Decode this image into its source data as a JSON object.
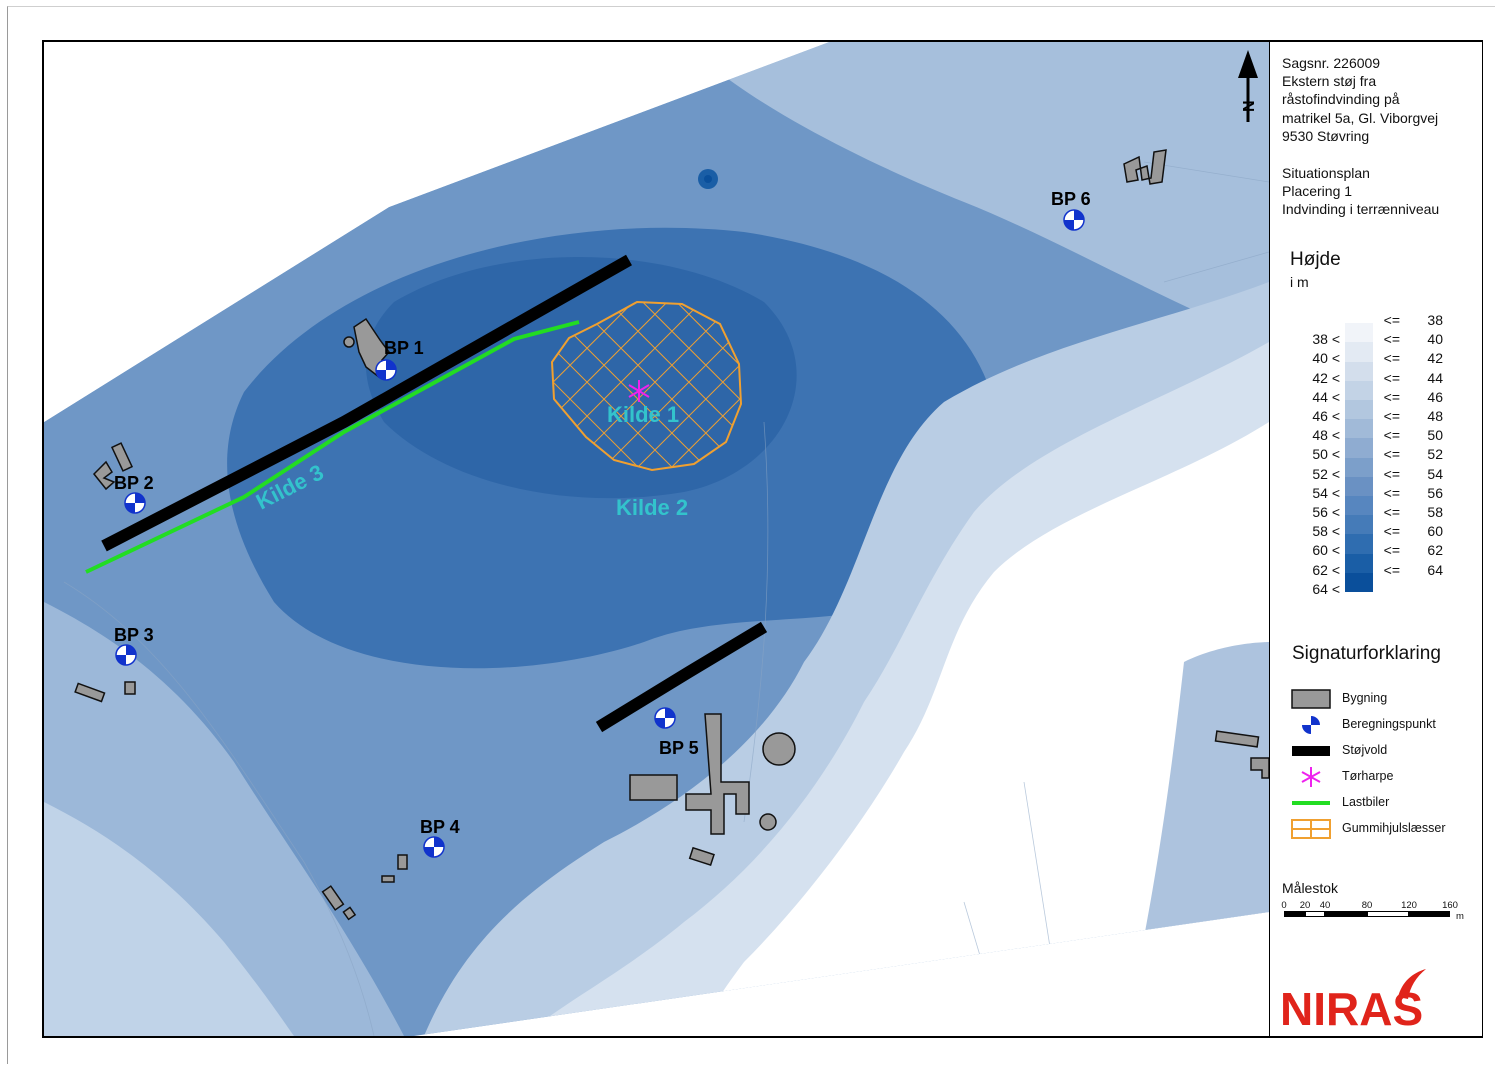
{
  "case_info": {
    "lines": [
      "Sagsnr. 226009",
      "Ekstern støj fra",
      "råstofindvinding på",
      "matrikel 5a, Gl. Viborgvej",
      "9530 Støvring"
    ]
  },
  "plan_info": {
    "lines": [
      "Situationsplan",
      "Placering 1",
      "Indvinding i terrænniveau"
    ]
  },
  "height_legend": {
    "title": "Højde",
    "unit": "i m",
    "rows": [
      {
        "lo": "",
        "le": "<=",
        "hi": "38",
        "color": ""
      },
      {
        "lo": "38 <",
        "le": "<=",
        "hi": "40",
        "color": "#f1f4f9"
      },
      {
        "lo": "40 <",
        "le": "<=",
        "hi": "42",
        "color": "#e3eaf3"
      },
      {
        "lo": "42 <",
        "le": "<=",
        "hi": "44",
        "color": "#d3deec"
      },
      {
        "lo": "44 <",
        "le": "<=",
        "hi": "46",
        "color": "#c3d3e6"
      },
      {
        "lo": "46 <",
        "le": "<=",
        "hi": "48",
        "color": "#b2c7df"
      },
      {
        "lo": "48 <",
        "le": "<=",
        "hi": "50",
        "color": "#a1bad8"
      },
      {
        "lo": "50 <",
        "le": "<=",
        "hi": "52",
        "color": "#8facd1"
      },
      {
        "lo": "52 <",
        "le": "<=",
        "hi": "54",
        "color": "#7c9fca"
      },
      {
        "lo": "54 <",
        "le": "<=",
        "hi": "56",
        "color": "#6a91c3"
      },
      {
        "lo": "56 <",
        "le": "<=",
        "hi": "58",
        "color": "#5786bf"
      },
      {
        "lo": "58 <",
        "le": "<=",
        "hi": "60",
        "color": "#457bb8"
      },
      {
        "lo": "60 <",
        "le": "<=",
        "hi": "62",
        "color": "#2f6db0"
      },
      {
        "lo": "62 <",
        "le": "<=",
        "hi": "64",
        "color": "#1a5ea6"
      },
      {
        "lo": "64 <",
        "le": "",
        "hi": "",
        "color": "#0a4f9b"
      }
    ]
  },
  "signature_legend": {
    "title": "Signaturforklaring",
    "items": [
      {
        "label": "Bygning",
        "icon": "building-icon"
      },
      {
        "label": "Beregningspunkt",
        "icon": "calculation-point-icon"
      },
      {
        "label": "Støjvold",
        "icon": "noise-barrier-icon"
      },
      {
        "label": "Tørharpe",
        "icon": "screen-asterisk-icon"
      },
      {
        "label": "Lastbiler",
        "icon": "truck-route-icon"
      },
      {
        "label": "Gummihjulslæsser",
        "icon": "wheel-loader-area-icon"
      }
    ]
  },
  "scale": {
    "title": "Målestok",
    "ticks": [
      "0",
      "20",
      "40",
      "80",
      "120",
      "160"
    ],
    "unit": "m"
  },
  "logo": {
    "text": "NIRAS",
    "color": "#e0241b"
  },
  "north_arrow": {
    "label": "N"
  },
  "map_labels": {
    "bp1": "BP 1",
    "bp2": "BP 2",
    "bp3": "BP 3",
    "bp4": "BP 4",
    "bp5": "BP 5",
    "bp6": "BP 6",
    "kilde1": "Kilde 1",
    "kilde2": "Kilde 2",
    "kilde3": "Kilde 3"
  },
  "colors": {
    "calc_point": "#1133cc",
    "berm": "#000000",
    "truck_route": "#22dd22",
    "loader_area": "#f0a030",
    "sorting_screen": "#ee22ee",
    "source_label": "#33c3cc",
    "building_fill": "#999999"
  }
}
